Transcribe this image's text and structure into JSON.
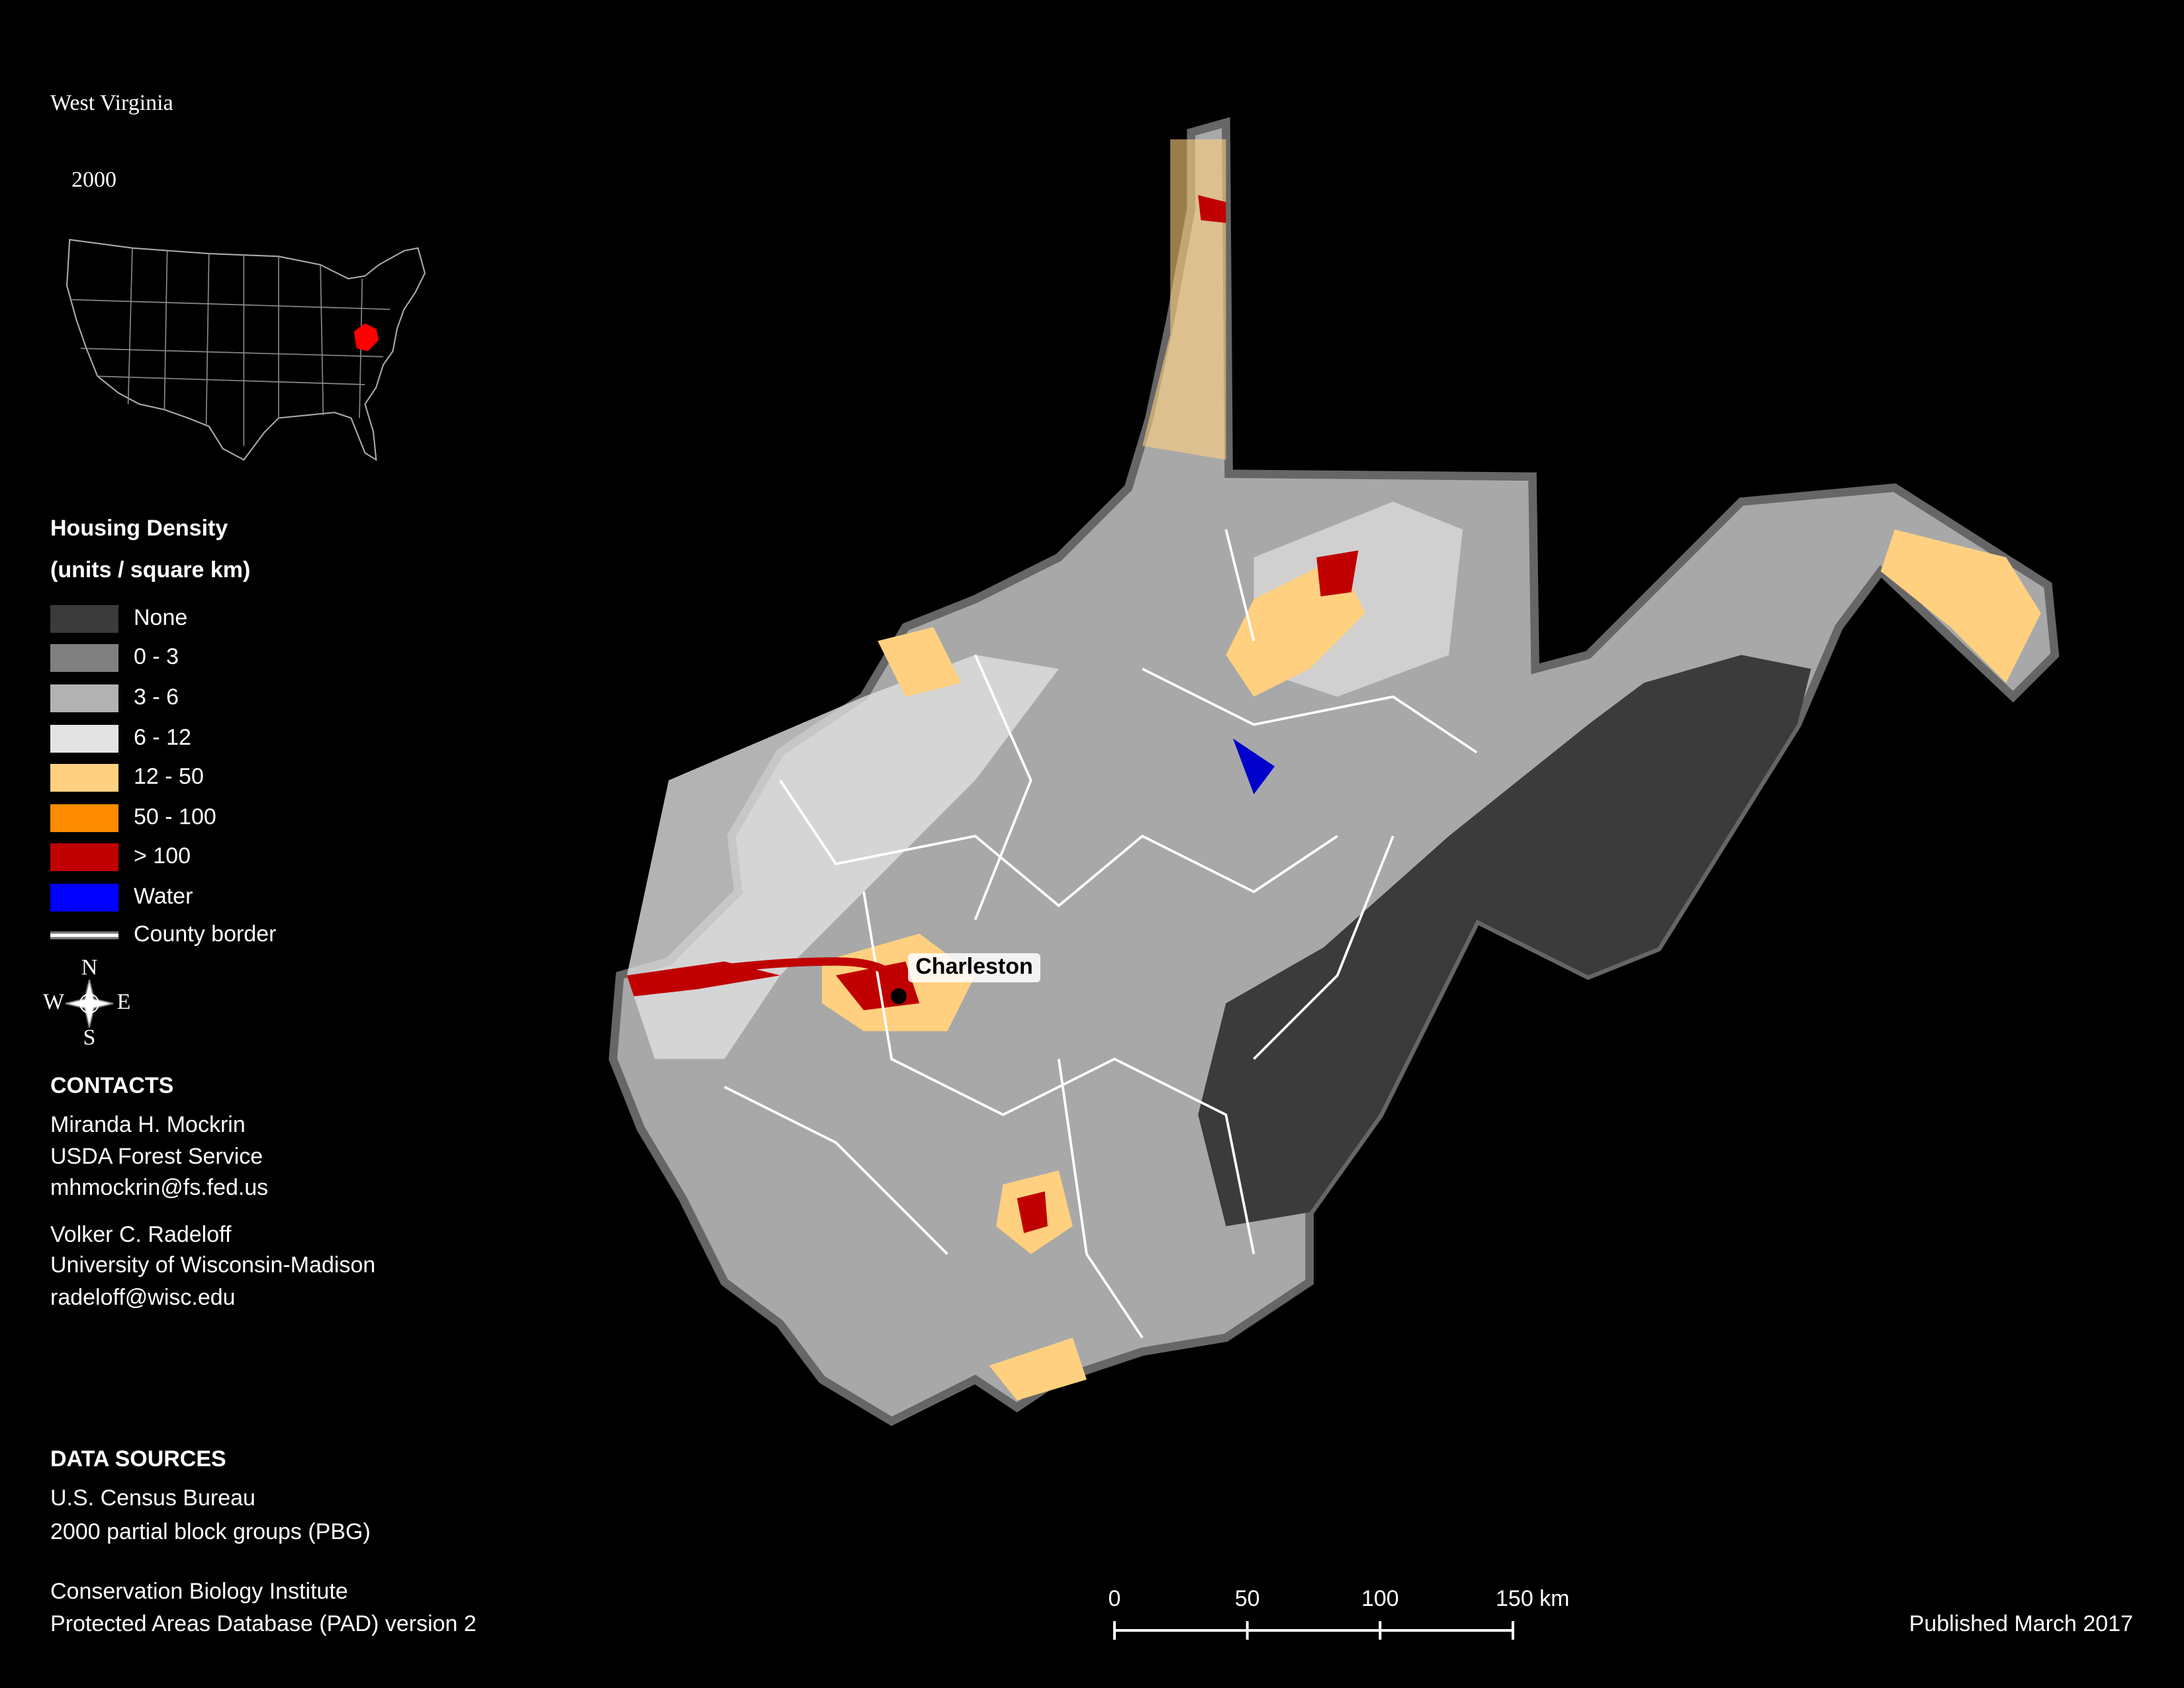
{
  "header": {
    "title": "West Virginia",
    "subtitle": "2000"
  },
  "legend": {
    "title": "Housing Density",
    "units": "(units / square km)",
    "items": [
      {
        "label": "None",
        "color": "#3b3b3b"
      },
      {
        "label": "0 - 3",
        "color": "#808080"
      },
      {
        "label": "3 - 6",
        "color": "#b2b2b2"
      },
      {
        "label": "6 - 12",
        "color": "#e3e3e3"
      },
      {
        "label": "12 - 50",
        "color": "#ffd07f"
      },
      {
        "label": "50 - 100",
        "color": "#ff8c00"
      },
      {
        "label": "> 100",
        "color": "#c00000"
      },
      {
        "label": "Water",
        "color": "#0000ff"
      },
      {
        "label": "County border",
        "color": "#ffffff",
        "symbol": "line"
      }
    ]
  },
  "compass": [
    "N",
    "E",
    "S",
    "W"
  ],
  "city": {
    "label": "Charleston"
  },
  "contacts": {
    "heading": "CONTACTS",
    "people": [
      [
        "Miranda H. Mockrin",
        "USDA Forest Service",
        "mhmockrin@fs.fed.us"
      ],
      [
        "Volker C. Radeloff",
        "University of Wisconsin-Madison",
        "radeloff@wisc.edu"
      ]
    ]
  },
  "data_sources": {
    "heading": "DATA SOURCES",
    "items": [
      [
        "U.S. Census Bureau",
        "2000 partial block groups (PBG)"
      ],
      [
        "Conservation Biology Institute",
        "Protected Areas Database (PAD) version 2"
      ]
    ]
  },
  "scale_bar": {
    "range": [
      0,
      150
    ],
    "ticks": [
      0,
      50,
      100,
      {
        "value": 150,
        "label": "150 km"
      }
    ]
  },
  "footer": {
    "published": "Published March 2017"
  }
}
